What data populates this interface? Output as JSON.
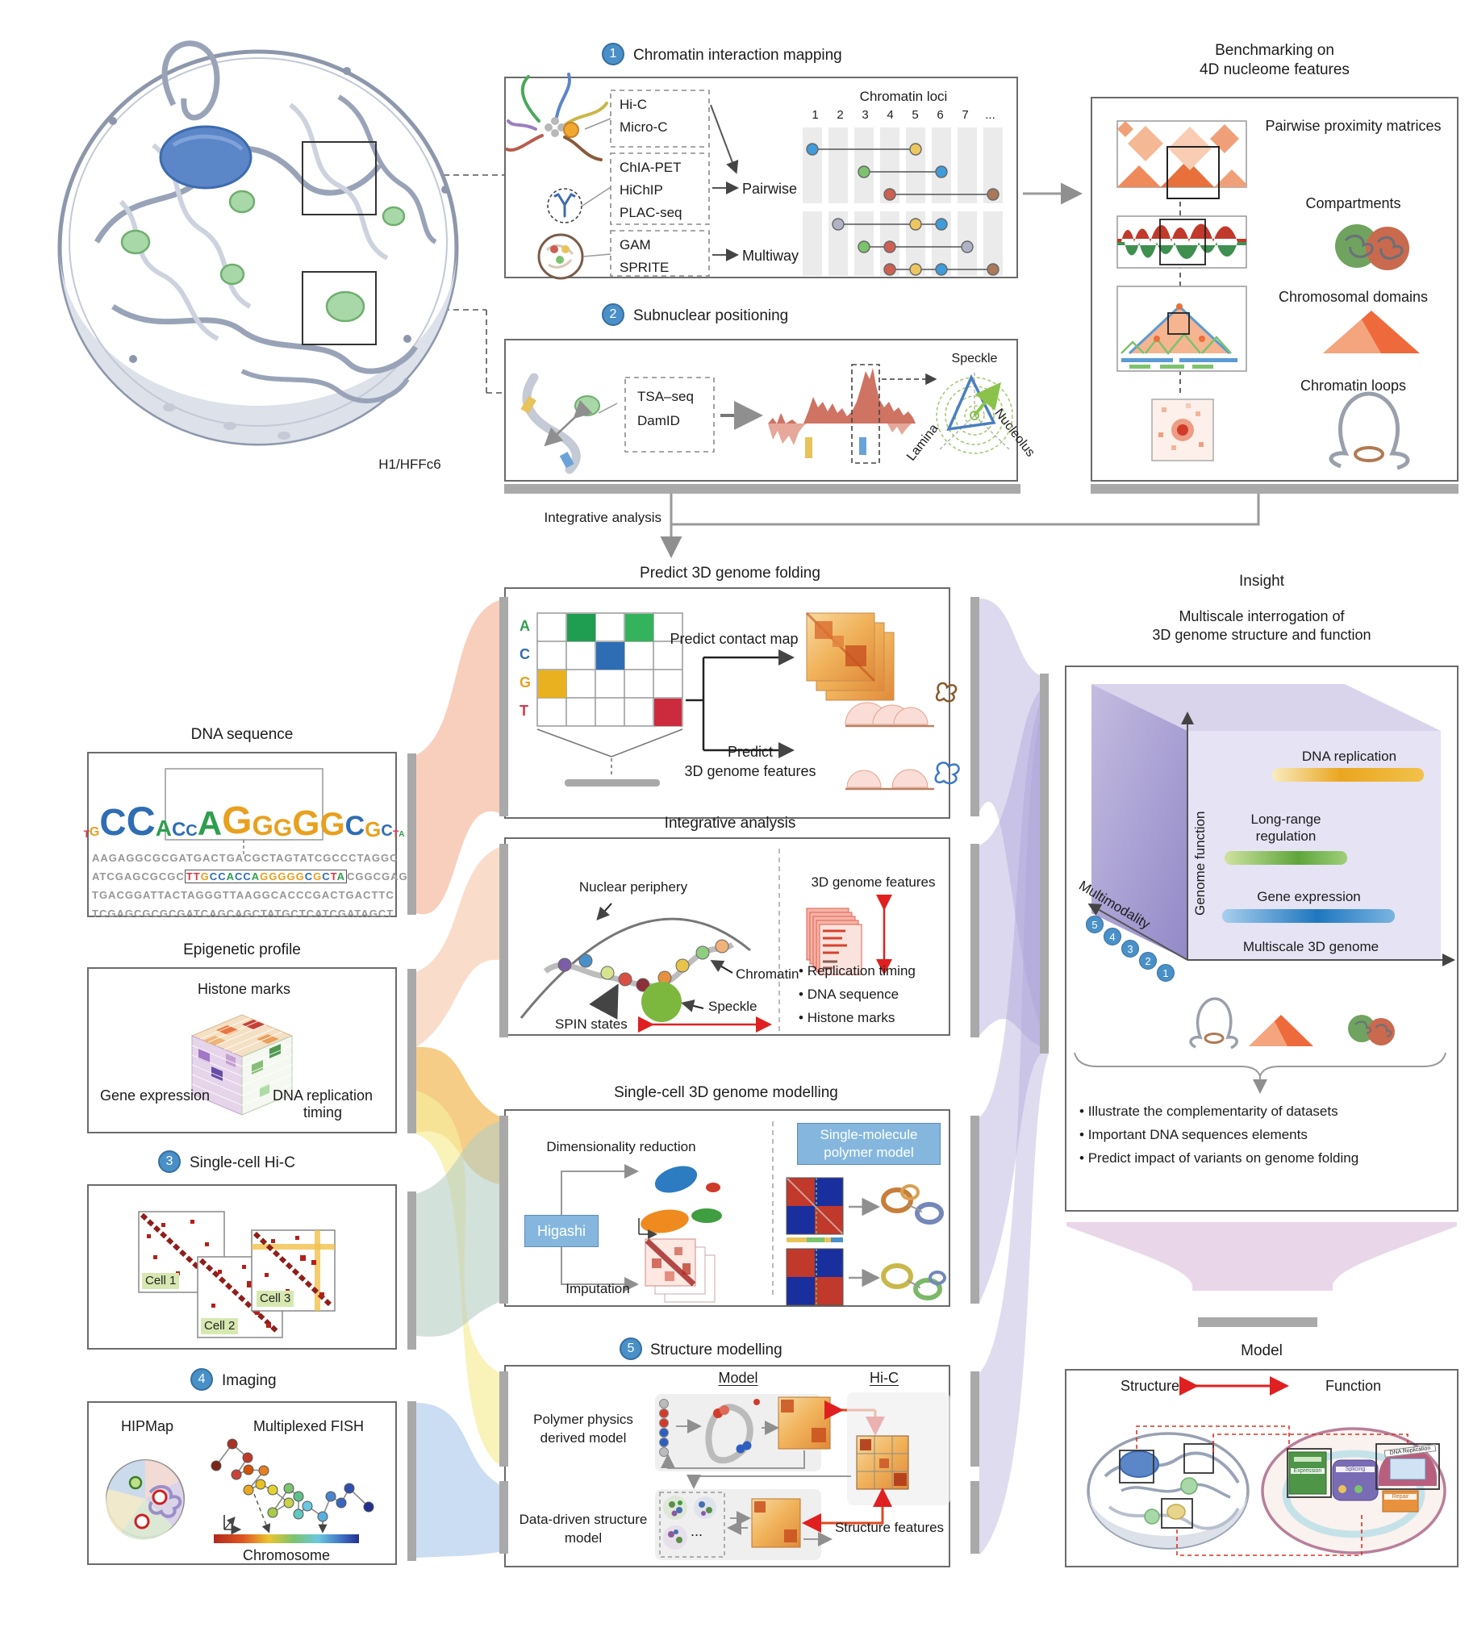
{
  "colors": {
    "step_blue": "#4a90c8",
    "accent_red": "#e02020",
    "bar_gray": "#a9a9a9",
    "base_A": "#2e9e4f",
    "base_C": "#2f6db4",
    "base_G": "#e8a01f",
    "base_T": "#d63a4a"
  },
  "top": {
    "nucleus_label": "H1/HFFc6",
    "step1": {
      "num": "1",
      "title": "Chromatin interaction mapping"
    },
    "panel1": {
      "box1": [
        "Hi-C",
        "Micro-C"
      ],
      "box2": [
        "ChIA-PET",
        "HiChIP",
        "PLAC-seq"
      ],
      "box3": [
        "GAM",
        "SPRITE"
      ],
      "pairwise": "Pairwise",
      "multiway": "Multiway",
      "loci_title": "Chromatin loci",
      "loci_cols": [
        "1",
        "2",
        "3",
        "4",
        "5",
        "6",
        "7",
        "..."
      ]
    },
    "benchmark": {
      "title1": "Benchmarking on",
      "title2": "4D nucleome features",
      "items": [
        "Pairwise proximity matrices",
        "Compartments",
        "Chromosomal domains",
        "Chromatin loops"
      ]
    },
    "step2": {
      "num": "2",
      "title": "Subnuclear positioning"
    },
    "panel2": {
      "methods": [
        "TSA–seq",
        "DamID"
      ],
      "speckle": "Speckle",
      "lamina": "Lamina",
      "nucleolus": "Nucleolus"
    },
    "integrative_arrow": "Integrative analysis"
  },
  "left": {
    "dna": {
      "title": "DNA sequence",
      "line1": "AAGAGGCGCGATGACTGACGCTAGTATCGCCCTAGGC",
      "line2_prefix": "ATCGAGCGCGC",
      "motif": "TTGCCACCAGGGGGCGCTA",
      "line2_suffix": "CGGCGAG",
      "line3": "TGACGGATTACTAGGGTTAAGGCACCCGACTGACTTC",
      "line4": "TCGAGCGCGCGATCAGCAGCTATGCTCATCGATAGCT",
      "logo": [
        [
          "T",
          12
        ],
        [
          "G",
          16
        ],
        [
          "C",
          46
        ],
        [
          "C",
          50
        ],
        [
          "A",
          28
        ],
        [
          "C",
          24
        ],
        [
          "C",
          20
        ],
        [
          "A",
          42
        ],
        [
          "G",
          48
        ],
        [
          "G",
          34
        ],
        [
          "G",
          30
        ],
        [
          "G",
          44
        ],
        [
          "G",
          40
        ],
        [
          "C",
          34
        ],
        [
          "G",
          26
        ],
        [
          "C",
          20
        ],
        [
          "T",
          12
        ],
        [
          "A",
          10
        ]
      ]
    },
    "epi": {
      "title": "Epigenetic profile",
      "histone": "Histone marks",
      "gene": "Gene expression",
      "repl": "DNA replication timing"
    },
    "step3": {
      "num": "3",
      "title": "Single-cell Hi-C",
      "cells": [
        "Cell 1",
        "Cell 2",
        "Cell 3"
      ]
    },
    "step4": {
      "num": "4",
      "title": "Imaging",
      "hipmap": "HIPMap",
      "fish": "Multiplexed FISH",
      "chromosome": "Chromosome"
    }
  },
  "center": {
    "predict": {
      "title": "Predict 3D genome folding",
      "acgt": [
        "A",
        "C",
        "G",
        "T"
      ],
      "contact": "Predict contact map",
      "p2a": "Predict",
      "p2b": "3D genome features"
    },
    "integrative": {
      "title": "Integrative analysis",
      "periphery": "Nuclear periphery",
      "chromatin": "Chromatin",
      "speckle": "Speckle",
      "spin": "SPIN states",
      "features_title": "3D genome features",
      "bullets": [
        "Replication timing",
        "DNA sequence",
        "Histone marks"
      ]
    },
    "sc": {
      "title": "Single-cell 3D genome modelling",
      "dimred": "Dimensionality reduction",
      "higashi": "Higashi",
      "imputation": "Imputation",
      "polymer": "Single-molecule polymer model"
    },
    "step5": {
      "num": "5",
      "title": "Structure modelling",
      "model": "Model",
      "hic": "Hi-C",
      "poly": "Polymer physics derived model",
      "dd": "Data-driven structure model",
      "sf": "Structure features",
      "dots": "..."
    }
  },
  "right": {
    "insight": "Insight",
    "multi": {
      "t1": "Multiscale interrogation of",
      "t2": "3D genome structure and function",
      "genome_function": "Genome function",
      "multimodality": "Multimodality",
      "multiscale": "Multiscale 3D genome",
      "bar1": "DNA replication",
      "bar2": "Long-range regulation",
      "bar3": "Gene expression",
      "nums": [
        "5",
        "4",
        "3",
        "2",
        "1"
      ]
    },
    "bullets": [
      "Illustrate the complementarity of datasets",
      "Important DNA sequences elements",
      "Predict impact of variants on genome folding"
    ],
    "model": {
      "title": "Model",
      "structure": "Structure",
      "function": "Function",
      "mini": [
        "DNA Replication",
        "Expression",
        "Splicing",
        "Repair"
      ]
    }
  }
}
